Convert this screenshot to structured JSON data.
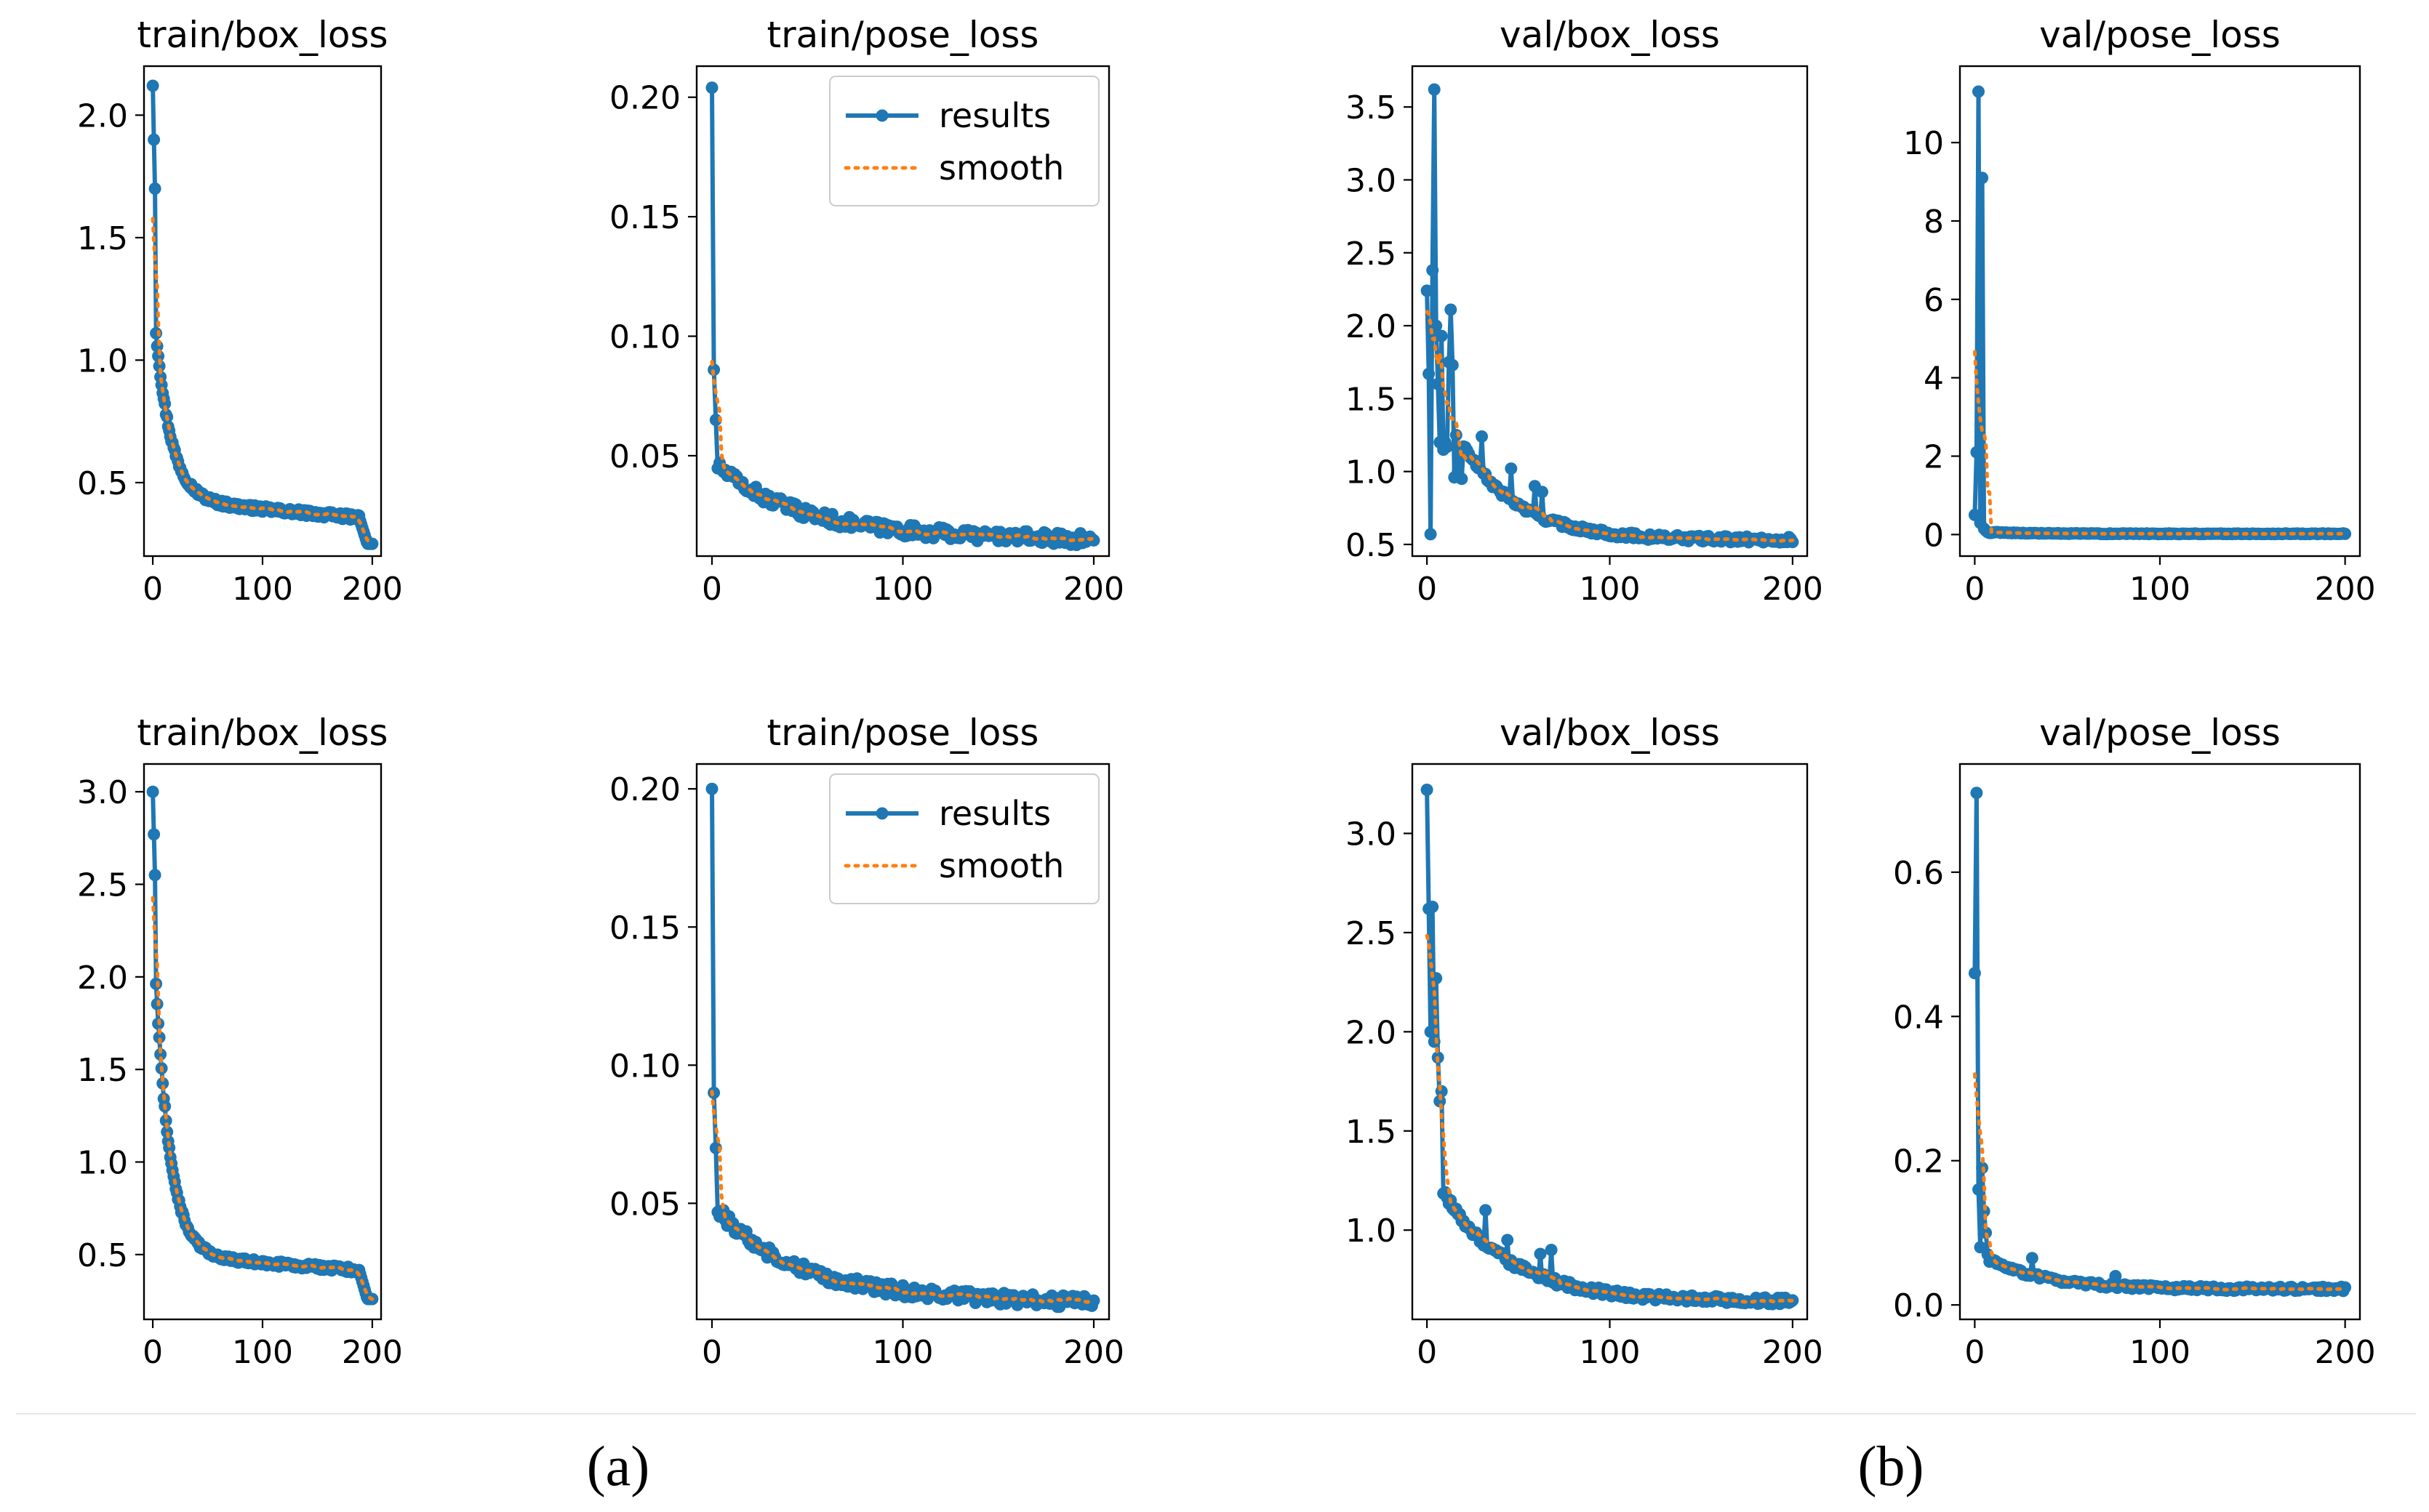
{
  "colors": {
    "results": "#1f77b4",
    "smooth": "#ff7f0e",
    "axis": "#000000"
  },
  "legend": {
    "results_label": "results",
    "smooth_label": "smooth",
    "placement": "top-right"
  },
  "captions": {
    "a": "(a)",
    "b": "(b)"
  },
  "chart_data": [
    {
      "id": "a-train-box",
      "panel": "a",
      "type": "line",
      "title": "train/box_loss",
      "xlim": [
        -8,
        208
      ],
      "ylim": [
        0.2,
        2.2
      ],
      "xticks": [
        0,
        100,
        200
      ],
      "yticks": [
        0.5,
        1.0,
        1.5,
        2.0
      ],
      "legend": false,
      "profile": "decay",
      "params": {
        "y0": 2.12,
        "y1": 1.9,
        "y2": 1.7,
        "a": 0.85,
        "tau": 14,
        "final": 0.43,
        "endy": 0.25,
        "drop": 188,
        "noise": 0.012,
        "spikes": []
      }
    },
    {
      "id": "a-train-pose",
      "panel": "a",
      "type": "line",
      "title": "train/pose_loss",
      "xlim": [
        -8,
        208
      ],
      "ylim": [
        0.008,
        0.213
      ],
      "xticks": [
        0,
        100,
        200
      ],
      "yticks": [
        0.05,
        0.1,
        0.15,
        0.2
      ],
      "legend": true,
      "profile": "decay",
      "params": {
        "y0": 0.204,
        "y1": 0.086,
        "y2": 0.065,
        "a": 0.03,
        "tau": 40,
        "final": 0.018,
        "endy": 0.016,
        "drop": 999,
        "noise": 0.0025,
        "spikes": []
      }
    },
    {
      "id": "a-val-box",
      "panel": "a",
      "type": "line",
      "title": "val/box_loss",
      "xlim": [
        -8,
        208
      ],
      "ylim": [
        0.42,
        3.78
      ],
      "xticks": [
        0,
        100,
        200
      ],
      "yticks": [
        0.5,
        1.0,
        1.5,
        2.0,
        2.5,
        3.0,
        3.5
      ],
      "legend": false,
      "profile": "val",
      "params": {
        "start": [
          2.24,
          1.67,
          0.57,
          2.38,
          3.62,
          2.0,
          1.6,
          1.2,
          1.93,
          1.15,
          1.2,
          1.17,
          1.75,
          2.11,
          1.73,
          0.96,
          1.25,
          1.0,
          1.1,
          0.95
        ],
        "a": 0.65,
        "tau": 30,
        "final": 0.53,
        "noise": 0.02,
        "spikes": [
          [
            30,
            1.24
          ],
          [
            46,
            1.02
          ],
          [
            59,
            0.9
          ],
          [
            63,
            0.86
          ]
        ]
      }
    },
    {
      "id": "a-val-pose",
      "panel": "a",
      "type": "line",
      "title": "val/pose_loss",
      "xlim": [
        -8,
        208
      ],
      "ylim": [
        -0.55,
        11.95
      ],
      "xticks": [
        0,
        100,
        200
      ],
      "yticks": [
        0,
        2,
        4,
        6,
        8,
        10
      ],
      "legend": false,
      "profile": "val",
      "params": {
        "start": [
          0.5,
          2.1,
          11.3,
          0.3,
          9.1,
          0.15,
          0.1,
          0.06,
          0.04,
          0.04
        ],
        "a": 0.04,
        "tau": 20,
        "final": 0.02,
        "noise": 0.01,
        "spikes": []
      }
    },
    {
      "id": "b-train-box",
      "panel": "b",
      "type": "line",
      "title": "train/box_loss",
      "xlim": [
        -8,
        208
      ],
      "ylim": [
        0.15,
        3.15
      ],
      "xticks": [
        0,
        100,
        200
      ],
      "yticks": [
        0.5,
        1.0,
        1.5,
        2.0,
        2.5,
        3.0
      ],
      "legend": false,
      "profile": "decay",
      "params": {
        "y0": 3.0,
        "y1": 2.77,
        "y2": 2.55,
        "a": 1.85,
        "tau": 13,
        "final": 0.5,
        "endy": 0.26,
        "drop": 188,
        "noise": 0.014,
        "spikes": []
      }
    },
    {
      "id": "b-train-pose",
      "panel": "b",
      "type": "line",
      "title": "train/pose_loss",
      "xlim": [
        -8,
        208
      ],
      "ylim": [
        0.008,
        0.209
      ],
      "xticks": [
        0,
        100,
        200
      ],
      "yticks": [
        0.05,
        0.1,
        0.15,
        0.2
      ],
      "legend": true,
      "profile": "decay",
      "params": {
        "y0": 0.2,
        "y1": 0.09,
        "y2": 0.07,
        "a": 0.033,
        "tau": 40,
        "final": 0.017,
        "endy": 0.015,
        "drop": 999,
        "noise": 0.0022,
        "spikes": []
      }
    },
    {
      "id": "b-val-box",
      "panel": "b",
      "type": "line",
      "title": "val/box_loss",
      "xlim": [
        -8,
        208
      ],
      "ylim": [
        0.55,
        3.35
      ],
      "xticks": [
        0,
        100,
        200
      ],
      "yticks": [
        1.0,
        1.5,
        2.0,
        2.5,
        3.0
      ],
      "legend": false,
      "profile": "val",
      "params": {
        "start": [
          3.22,
          2.62,
          2.0,
          2.63,
          1.95,
          2.27,
          1.87,
          1.65,
          1.7
        ],
        "a": 0.55,
        "tau": 36,
        "final": 0.64,
        "noise": 0.018,
        "spikes": [
          [
            32,
            1.1
          ],
          [
            44,
            0.95
          ],
          [
            62,
            0.88
          ],
          [
            68,
            0.9
          ]
        ]
      }
    },
    {
      "id": "b-val-pose",
      "panel": "b",
      "type": "line",
      "title": "val/pose_loss",
      "xlim": [
        -8,
        208
      ],
      "ylim": [
        -0.02,
        0.75
      ],
      "xticks": [
        0,
        100,
        200
      ],
      "yticks": [
        0.0,
        0.2,
        0.4,
        0.6
      ],
      "legend": false,
      "profile": "val",
      "params": {
        "start": [
          0.46,
          0.71,
          0.16,
          0.08,
          0.19,
          0.13,
          0.1,
          0.07,
          0.06
        ],
        "a": 0.04,
        "tau": 30,
        "final": 0.022,
        "noise": 0.003,
        "spikes": [
          [
            31,
            0.065
          ],
          [
            76,
            0.04
          ]
        ]
      }
    }
  ]
}
